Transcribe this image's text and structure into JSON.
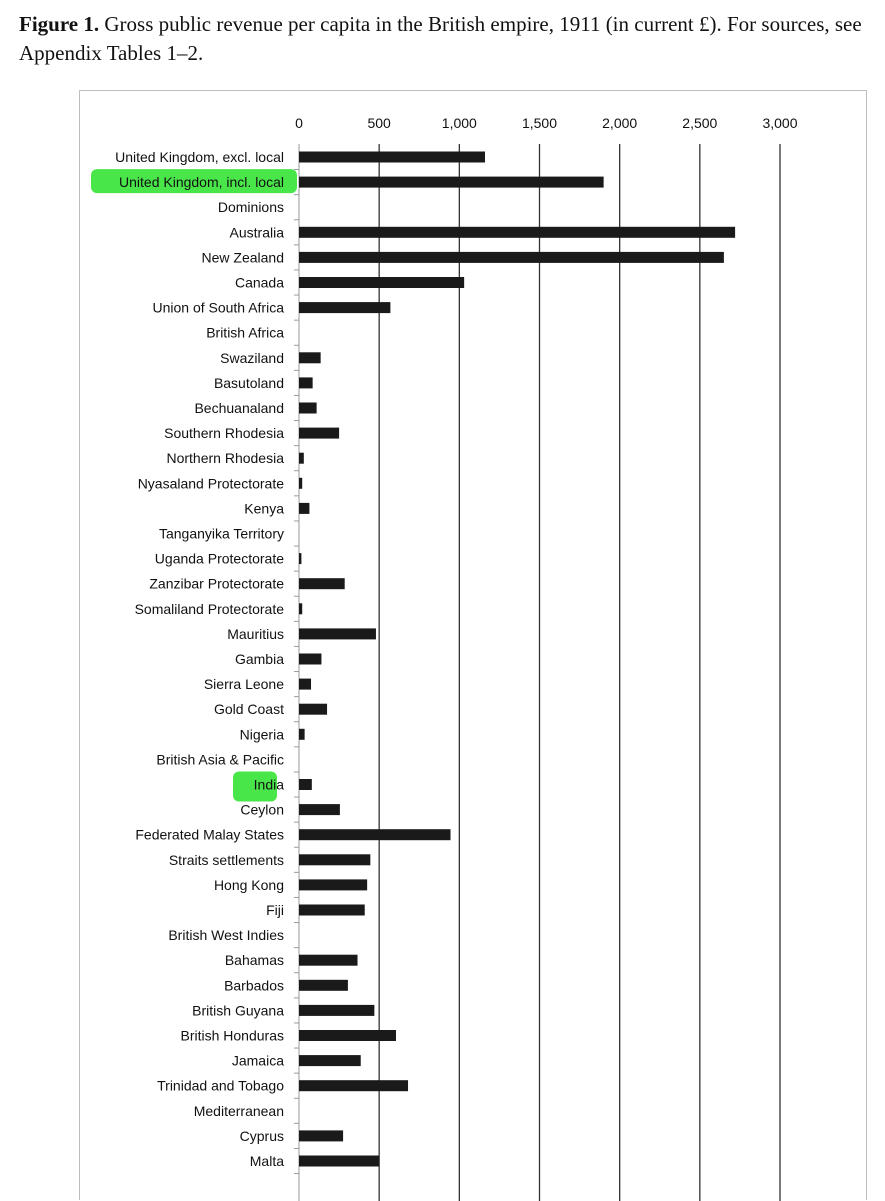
{
  "caption": {
    "label": "Figure 1.",
    "text": "Gross public revenue per capita in the British empire, 1911 (in current £). For sources, see Appendix Tables 1–2."
  },
  "colors": {
    "bar": "#1a1a1a",
    "grid": "#333333",
    "highlight": "#3fe53f"
  },
  "chart_data": {
    "type": "bar",
    "orientation": "horizontal",
    "title": "",
    "xlabel": "",
    "ylabel": "",
    "xlim": [
      0,
      3000
    ],
    "xticks": [
      0,
      500,
      1000,
      1500,
      2000,
      2500,
      3000
    ],
    "xtick_labels": [
      "0",
      "500",
      "1,000",
      "1,500",
      "2,000",
      "2,500",
      "3,000"
    ],
    "grid": true,
    "legend": "none",
    "highlighted": [
      "United Kingdom, incl. local",
      "India"
    ],
    "categories": [
      "United Kingdom, excl. local",
      "United Kingdom, incl. local",
      "Dominions",
      "Australia",
      "New Zealand",
      "Canada",
      "Union of South Africa",
      "British Africa",
      "Swaziland",
      "Basutoland",
      "Bechuanaland",
      "Southern Rhodesia",
      "Northern Rhodesia",
      "Nyasaland Protectorate",
      "Kenya",
      "Tanganyika Territory",
      "Uganda Protectorate",
      "Zanzibar Protectorate",
      "Somaliland Protectorate",
      "Mauritius",
      "Gambia",
      "Sierra Leone",
      "Gold Coast",
      "Nigeria",
      "British Asia & Pacific",
      "India",
      "Ceylon",
      "Federated Malay States",
      "Straits settlements",
      "Hong Kong",
      "Fiji",
      "British West Indies",
      "Bahamas",
      "Barbados",
      "British Guyana",
      "British Honduras",
      "Jamaica",
      "Trinidad and Tobago",
      "Mediterranean",
      "Cyprus",
      "Malta"
    ],
    "values": [
      1160,
      1900,
      null,
      2720,
      2650,
      1030,
      570,
      null,
      135,
      85,
      110,
      250,
      30,
      20,
      65,
      null,
      15,
      285,
      20,
      480,
      140,
      75,
      175,
      35,
      null,
      80,
      255,
      945,
      445,
      425,
      410,
      null,
      365,
      305,
      470,
      605,
      385,
      680,
      null,
      275,
      500
    ]
  }
}
